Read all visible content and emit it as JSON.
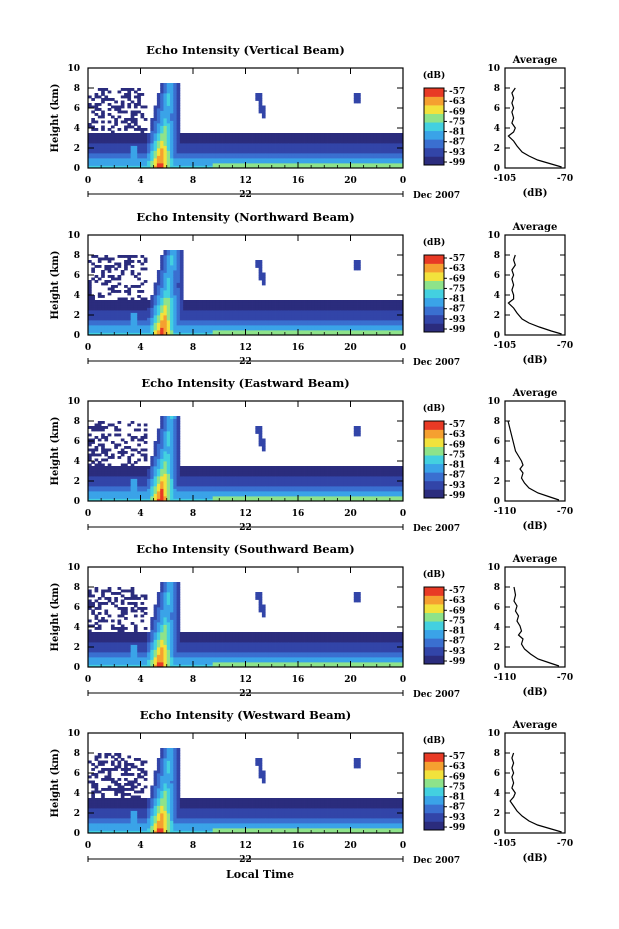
{
  "figure": {
    "xlabel": "Local Time",
    "date_label": "Dec 2007",
    "date_day": "22"
  },
  "chart_data": [
    {
      "type": "heatmap",
      "title": "Echo Intensity (Vertical Beam)",
      "ylabel": "Height (km)",
      "xlabel": "Local Time",
      "x_ticks": [
        "0",
        "4",
        "8",
        "12",
        "16",
        "20",
        "0"
      ],
      "y_ticks": [
        "0",
        "2",
        "4",
        "6",
        "8",
        "10"
      ],
      "xlim": [
        0,
        24
      ],
      "ylim": [
        0,
        10
      ],
      "colorbar": {
        "unit": "(dB)",
        "ticks": [
          "-57",
          "-63",
          "-69",
          "-75",
          "-81",
          "-87",
          "-93",
          "-99"
        ]
      },
      "average": {
        "title": "Average",
        "xlabel": "(dB)",
        "x_ticks": [
          "-105",
          "-70"
        ],
        "xlim": [
          -105,
          -70
        ],
        "y_ticks": [
          "0",
          "2",
          "4",
          "6",
          "8",
          "10"
        ],
        "profile": [
          [
            -72,
            0.1
          ],
          [
            -78,
            0.4
          ],
          [
            -86,
            0.8
          ],
          [
            -91,
            1.2
          ],
          [
            -95,
            1.6
          ],
          [
            -98,
            2.2
          ],
          [
            -100,
            2.7
          ],
          [
            -103,
            3.2
          ],
          [
            -100,
            3.6
          ],
          [
            -99,
            4.0
          ],
          [
            -101,
            4.5
          ],
          [
            -100,
            5.0
          ],
          [
            -101,
            5.6
          ],
          [
            -100,
            6.0
          ],
          [
            -101,
            6.5
          ],
          [
            -100,
            7.0
          ],
          [
            -101,
            7.5
          ],
          [
            -99,
            8.0
          ]
        ]
      }
    },
    {
      "type": "heatmap",
      "title": "Echo Intensity (Northward Beam)",
      "ylabel": "Height (km)",
      "xlabel": "Local Time",
      "x_ticks": [
        "0",
        "4",
        "8",
        "12",
        "16",
        "20",
        "0"
      ],
      "y_ticks": [
        "0",
        "2",
        "4",
        "6",
        "8",
        "10"
      ],
      "xlim": [
        0,
        24
      ],
      "ylim": [
        0,
        10
      ],
      "colorbar": {
        "unit": "(dB)",
        "ticks": [
          "-57",
          "-63",
          "-69",
          "-75",
          "-81",
          "-87",
          "-93",
          "-99"
        ]
      },
      "average": {
        "title": "Average",
        "xlabel": "(dB)",
        "x_ticks": [
          "-105",
          "-70"
        ],
        "xlim": [
          -105,
          -70
        ],
        "y_ticks": [
          "0",
          "2",
          "4",
          "6",
          "8",
          "10"
        ],
        "profile": [
          [
            -72,
            0.1
          ],
          [
            -78,
            0.4
          ],
          [
            -85,
            0.8
          ],
          [
            -91,
            1.2
          ],
          [
            -95,
            1.6
          ],
          [
            -98,
            2.2
          ],
          [
            -100,
            2.7
          ],
          [
            -103,
            3.2
          ],
          [
            -100,
            3.6
          ],
          [
            -100,
            4.0
          ],
          [
            -101,
            4.5
          ],
          [
            -100,
            5.0
          ],
          [
            -101,
            5.6
          ],
          [
            -100,
            6.0
          ],
          [
            -101,
            6.5
          ],
          [
            -99,
            7.0
          ],
          [
            -100,
            7.5
          ],
          [
            -99,
            8.0
          ]
        ]
      }
    },
    {
      "type": "heatmap",
      "title": "Echo Intensity (Eastward Beam)",
      "ylabel": "Height (km)",
      "xlabel": "Local Time",
      "x_ticks": [
        "0",
        "4",
        "8",
        "12",
        "16",
        "20",
        "0"
      ],
      "y_ticks": [
        "0",
        "2",
        "4",
        "6",
        "8",
        "10"
      ],
      "xlim": [
        0,
        24
      ],
      "ylim": [
        0,
        10
      ],
      "colorbar": {
        "unit": "(dB)",
        "ticks": [
          "-57",
          "-63",
          "-69",
          "-75",
          "-81",
          "-87",
          "-93",
          "-99"
        ]
      },
      "average": {
        "title": "Average",
        "xlabel": "(dB)",
        "x_ticks": [
          "-110",
          "-70"
        ],
        "xlim": [
          -110,
          -70
        ],
        "y_ticks": [
          "0",
          "2",
          "4",
          "6",
          "8",
          "10"
        ],
        "profile": [
          [
            -74,
            0.1
          ],
          [
            -80,
            0.4
          ],
          [
            -88,
            0.8
          ],
          [
            -94,
            1.3
          ],
          [
            -97,
            1.8
          ],
          [
            -99,
            2.3
          ],
          [
            -98,
            2.8
          ],
          [
            -100,
            3.2
          ],
          [
            -98,
            3.6
          ],
          [
            -99,
            4.0
          ],
          [
            -101,
            4.5
          ],
          [
            -103,
            5.0
          ],
          [
            -104,
            5.6
          ],
          [
            -105,
            6.2
          ],
          [
            -106,
            6.8
          ],
          [
            -107,
            7.4
          ],
          [
            -108,
            8.0
          ]
        ]
      }
    },
    {
      "type": "heatmap",
      "title": "Echo Intensity (Southward Beam)",
      "ylabel": "Height (km)",
      "xlabel": "Local Time",
      "x_ticks": [
        "0",
        "4",
        "8",
        "12",
        "16",
        "20",
        "0"
      ],
      "y_ticks": [
        "0",
        "2",
        "4",
        "6",
        "8",
        "10"
      ],
      "xlim": [
        0,
        24
      ],
      "ylim": [
        0,
        10
      ],
      "colorbar": {
        "unit": "(dB)",
        "ticks": [
          "-57",
          "-63",
          "-69",
          "-75",
          "-81",
          "-87",
          "-93",
          "-99"
        ]
      },
      "average": {
        "title": "Average",
        "xlabel": "(dB)",
        "x_ticks": [
          "-110",
          "-70"
        ],
        "xlim": [
          -110,
          -70
        ],
        "y_ticks": [
          "0",
          "2",
          "4",
          "6",
          "8",
          "10"
        ],
        "profile": [
          [
            -74,
            0.1
          ],
          [
            -80,
            0.4
          ],
          [
            -88,
            0.8
          ],
          [
            -93,
            1.3
          ],
          [
            -97,
            1.8
          ],
          [
            -99,
            2.3
          ],
          [
            -98,
            2.8
          ],
          [
            -101,
            3.2
          ],
          [
            -99,
            3.6
          ],
          [
            -100,
            4.1
          ],
          [
            -102,
            4.6
          ],
          [
            -101,
            5.1
          ],
          [
            -103,
            5.6
          ],
          [
            -102,
            6.1
          ],
          [
            -104,
            6.6
          ],
          [
            -103,
            7.2
          ],
          [
            -104,
            8.0
          ]
        ]
      }
    },
    {
      "type": "heatmap",
      "title": "Echo Intensity (Westward Beam)",
      "ylabel": "Height (km)",
      "xlabel": "Local Time",
      "x_ticks": [
        "0",
        "4",
        "8",
        "12",
        "16",
        "20",
        "0"
      ],
      "y_ticks": [
        "0",
        "2",
        "4",
        "6",
        "8",
        "10"
      ],
      "xlim": [
        0,
        24
      ],
      "ylim": [
        0,
        10
      ],
      "colorbar": {
        "unit": "(dB)",
        "ticks": [
          "-57",
          "-63",
          "-69",
          "-75",
          "-81",
          "-87",
          "-93",
          "-99"
        ]
      },
      "average": {
        "title": "Average",
        "xlabel": "(dB)",
        "x_ticks": [
          "-105",
          "-70"
        ],
        "xlim": [
          -105,
          -70
        ],
        "y_ticks": [
          "0",
          "2",
          "4",
          "6",
          "8",
          "10"
        ],
        "profile": [
          [
            -72,
            0.1
          ],
          [
            -78,
            0.4
          ],
          [
            -86,
            0.8
          ],
          [
            -91,
            1.2
          ],
          [
            -95,
            1.7
          ],
          [
            -98,
            2.2
          ],
          [
            -100,
            2.7
          ],
          [
            -102,
            3.2
          ],
          [
            -100,
            3.6
          ],
          [
            -99,
            4.0
          ],
          [
            -101,
            4.5
          ],
          [
            -100,
            5.0
          ],
          [
            -101,
            5.6
          ],
          [
            -100,
            6.0
          ],
          [
            -101,
            6.5
          ],
          [
            -100,
            7.0
          ],
          [
            -101,
            7.5
          ],
          [
            -100,
            8.0
          ]
        ]
      }
    }
  ],
  "colors": {
    "scale": [
      "#2b2c7d",
      "#3245a8",
      "#3a6fd0",
      "#3aa3e8",
      "#43d0e0",
      "#8ee38a",
      "#f2e23c",
      "#f5a030",
      "#e83a25"
    ],
    "frame": "#000000"
  }
}
